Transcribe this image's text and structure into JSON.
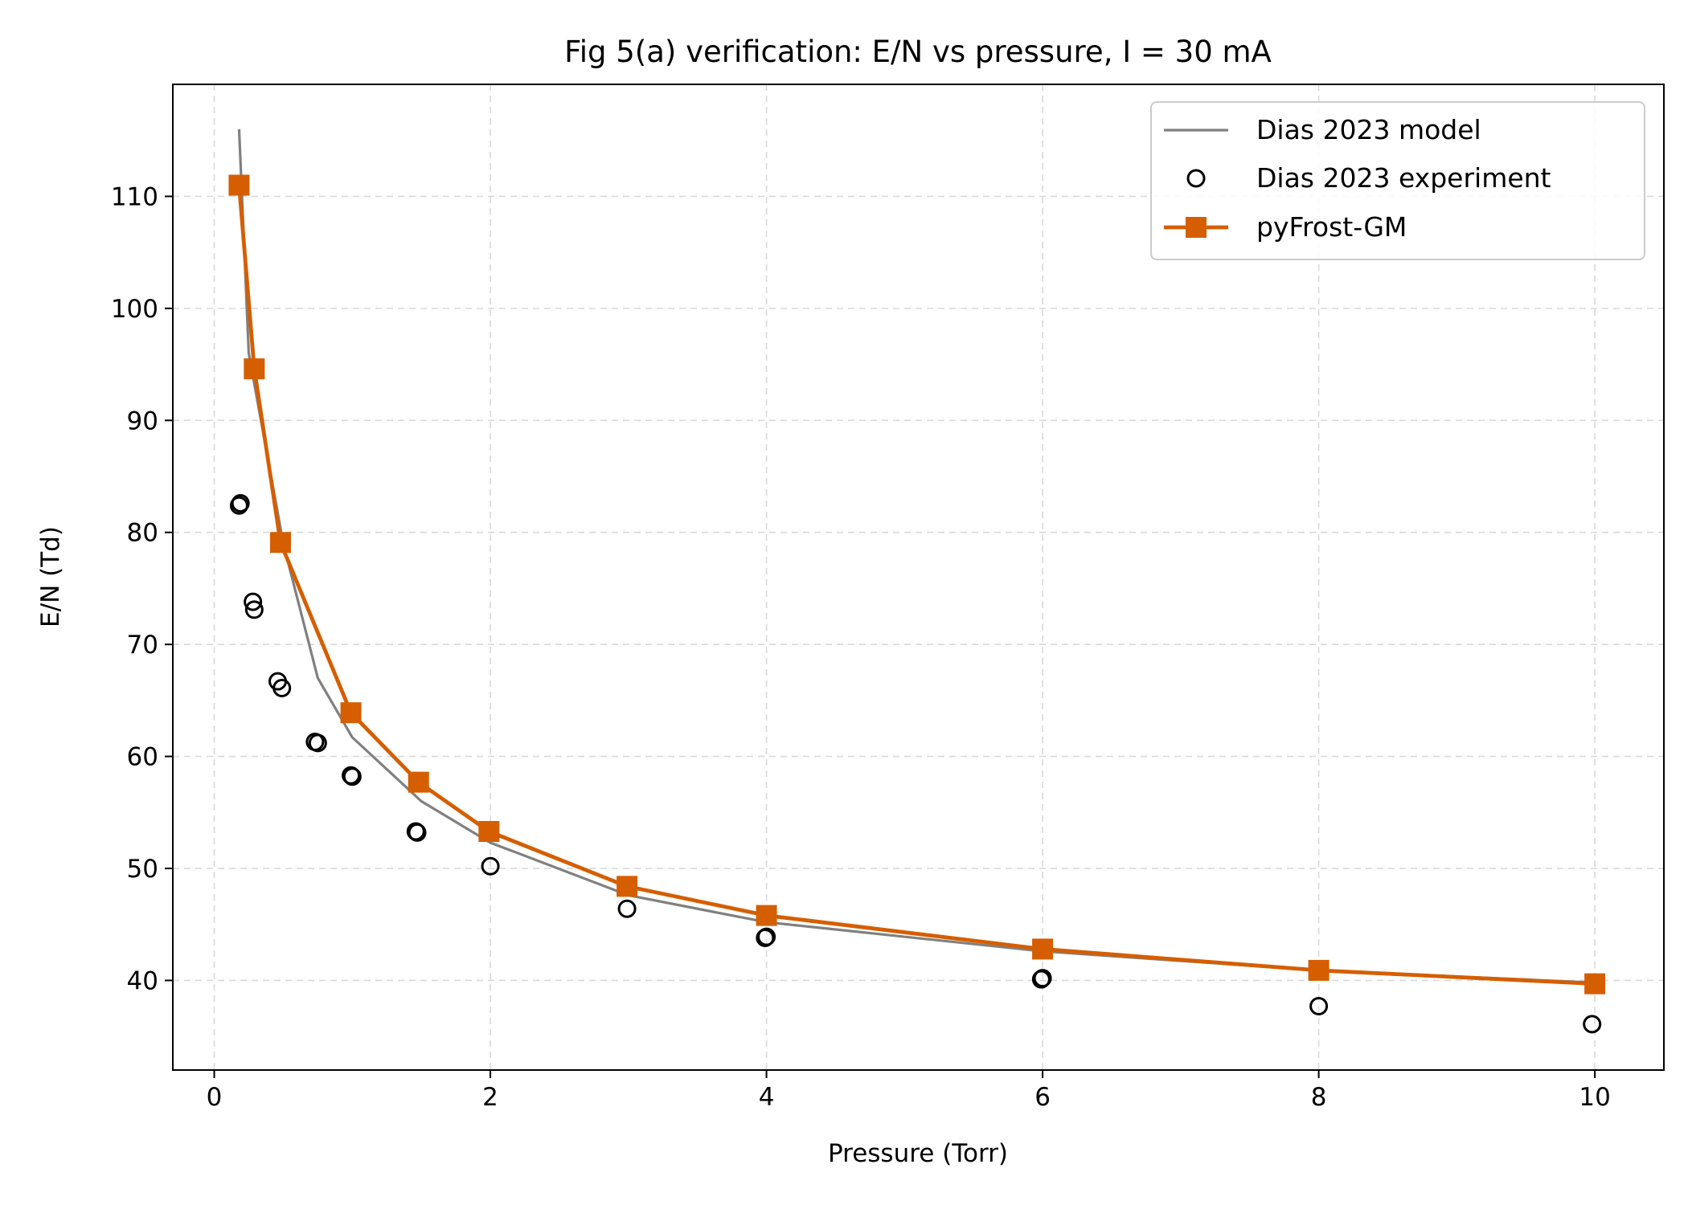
{
  "chart_data": {
    "type": "line",
    "title": "Fig 5(a) verification: E/N vs pressure, I = 30 mA",
    "xlabel": "Pressure (Torr)",
    "ylabel": "E/N (Td)",
    "xlim": [
      -0.3,
      10.5
    ],
    "ylim": [
      32,
      120
    ],
    "xticks": [
      0,
      2,
      4,
      6,
      8,
      10
    ],
    "yticks": [
      40,
      50,
      60,
      70,
      80,
      90,
      100,
      110
    ],
    "grid": true,
    "legend_position": "top-right",
    "series": [
      {
        "name": "Dias 2023 model",
        "style": "line",
        "color": "#808080",
        "points": [
          {
            "x": 0.18,
            "y": 116
          },
          {
            "x": 0.25,
            "y": 96
          },
          {
            "x": 0.5,
            "y": 79
          },
          {
            "x": 0.75,
            "y": 67
          },
          {
            "x": 1.0,
            "y": 61.7
          },
          {
            "x": 1.5,
            "y": 56
          },
          {
            "x": 2.0,
            "y": 52.3
          },
          {
            "x": 3.0,
            "y": 47.6
          },
          {
            "x": 4.0,
            "y": 45.2
          },
          {
            "x": 6.0,
            "y": 42.6
          },
          {
            "x": 8.0,
            "y": 40.9
          },
          {
            "x": 10.0,
            "y": 39.8
          }
        ]
      },
      {
        "name": "Dias 2023 experiment",
        "style": "open-circle",
        "color": "#000000",
        "points": [
          {
            "x": 0.18,
            "y": 82.4
          },
          {
            "x": 0.19,
            "y": 82.6
          },
          {
            "x": 0.28,
            "y": 73.8
          },
          {
            "x": 0.29,
            "y": 73.1
          },
          {
            "x": 0.46,
            "y": 66.7
          },
          {
            "x": 0.49,
            "y": 66.1
          },
          {
            "x": 0.73,
            "y": 61.3
          },
          {
            "x": 0.75,
            "y": 61.2
          },
          {
            "x": 0.99,
            "y": 58.3
          },
          {
            "x": 1.0,
            "y": 58.2
          },
          {
            "x": 1.46,
            "y": 53.3
          },
          {
            "x": 1.47,
            "y": 53.2
          },
          {
            "x": 2.0,
            "y": 50.2
          },
          {
            "x": 2.99,
            "y": 46.4
          },
          {
            "x": 3.99,
            "y": 43.8
          },
          {
            "x": 4.0,
            "y": 43.9
          },
          {
            "x": 5.99,
            "y": 40.1
          },
          {
            "x": 6.0,
            "y": 40.2
          },
          {
            "x": 8.0,
            "y": 37.7
          },
          {
            "x": 9.98,
            "y": 36.1
          }
        ]
      },
      {
        "name": "pyFrost-GM",
        "style": "line-square",
        "color": "#d55e00",
        "points": [
          {
            "x": 0.18,
            "y": 111
          },
          {
            "x": 0.29,
            "y": 94.6
          },
          {
            "x": 0.48,
            "y": 79.1
          },
          {
            "x": 0.99,
            "y": 63.9
          },
          {
            "x": 1.48,
            "y": 57.7
          },
          {
            "x": 1.99,
            "y": 53.3
          },
          {
            "x": 2.99,
            "y": 48.4
          },
          {
            "x": 4.0,
            "y": 45.8
          },
          {
            "x": 6.0,
            "y": 42.8
          },
          {
            "x": 8.0,
            "y": 40.9
          },
          {
            "x": 10.0,
            "y": 39.7
          }
        ]
      }
    ]
  }
}
